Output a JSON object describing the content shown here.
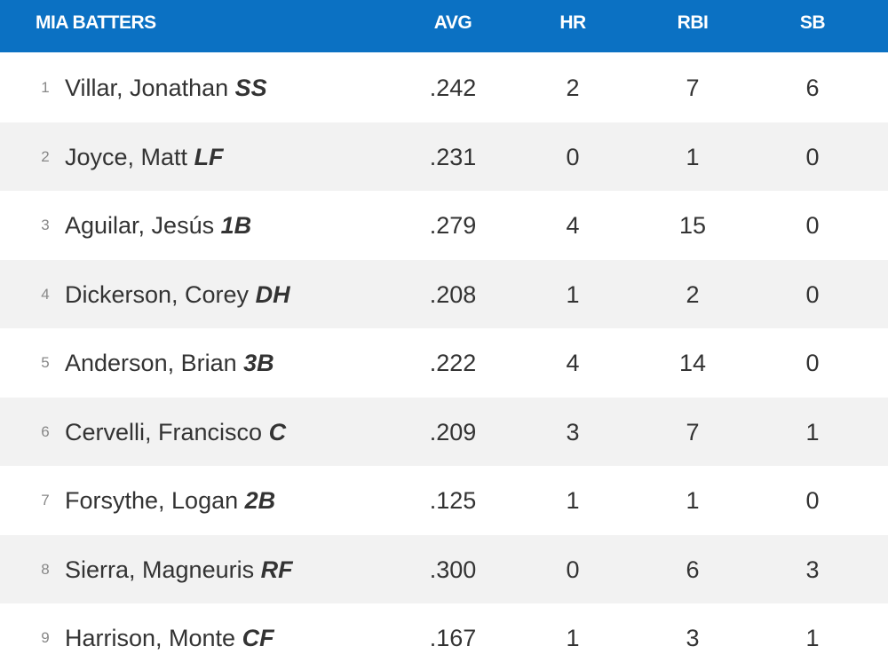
{
  "table": {
    "columns": [
      "MIA BATTERS",
      "AVG",
      "HR",
      "RBI",
      "SB"
    ],
    "rows": [
      {
        "order": 1,
        "name": "Villar, Jonathan",
        "position": "SS",
        "avg": ".242",
        "hr": 2,
        "rbi": 7,
        "sb": 6
      },
      {
        "order": 2,
        "name": "Joyce, Matt",
        "position": "LF",
        "avg": ".231",
        "hr": 0,
        "rbi": 1,
        "sb": 0
      },
      {
        "order": 3,
        "name": "Aguilar, Jesús",
        "position": "1B",
        "avg": ".279",
        "hr": 4,
        "rbi": 15,
        "sb": 0
      },
      {
        "order": 4,
        "name": "Dickerson, Corey",
        "position": "DH",
        "avg": ".208",
        "hr": 1,
        "rbi": 2,
        "sb": 0
      },
      {
        "order": 5,
        "name": "Anderson, Brian",
        "position": "3B",
        "avg": ".222",
        "hr": 4,
        "rbi": 14,
        "sb": 0
      },
      {
        "order": 6,
        "name": "Cervelli, Francisco",
        "position": "C",
        "avg": ".209",
        "hr": 3,
        "rbi": 7,
        "sb": 1
      },
      {
        "order": 7,
        "name": "Forsythe, Logan",
        "position": "2B",
        "avg": ".125",
        "hr": 1,
        "rbi": 1,
        "sb": 0
      },
      {
        "order": 8,
        "name": "Sierra, Magneuris",
        "position": "RF",
        "avg": ".300",
        "hr": 0,
        "rbi": 6,
        "sb": 3
      },
      {
        "order": 9,
        "name": "Harrison, Monte",
        "position": "CF",
        "avg": ".167",
        "hr": 1,
        "rbi": 3,
        "sb": 1
      }
    ]
  }
}
